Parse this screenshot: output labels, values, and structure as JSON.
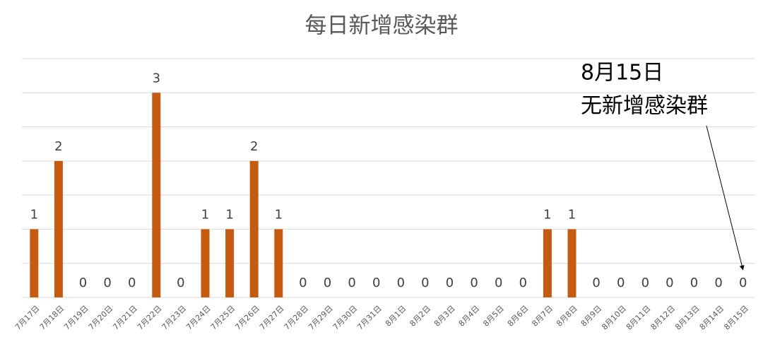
{
  "chart_data": {
    "type": "bar",
    "title": "每日新增感染群",
    "categories": [
      "7月17日",
      "7月18日",
      "7月19日",
      "7月20日",
      "7月21日",
      "7月22日",
      "7月23日",
      "7月24日",
      "7月25日",
      "7月26日",
      "7月27日",
      "7月28日",
      "7月29日",
      "7月30日",
      "7月31日",
      "8月1日",
      "8月2日",
      "8月3日",
      "8月4日",
      "8月5日",
      "8月6日",
      "8月7日",
      "8月8日",
      "8月9日",
      "8月10日",
      "8月11日",
      "8月12日",
      "8月13日",
      "8月14日",
      "8月15日"
    ],
    "values": [
      1,
      2,
      0,
      0,
      0,
      3,
      0,
      1,
      1,
      2,
      1,
      0,
      0,
      0,
      0,
      0,
      0,
      0,
      0,
      0,
      0,
      1,
      1,
      0,
      0,
      0,
      0,
      0,
      0,
      0
    ],
    "color": "#c55a11",
    "ylim": [
      0,
      3.5
    ],
    "yticks": [
      0,
      0.5,
      1,
      1.5,
      2,
      2.5,
      3,
      3.5
    ],
    "grid": true,
    "annotation": [
      "8月15日",
      "无新增感染群"
    ]
  }
}
